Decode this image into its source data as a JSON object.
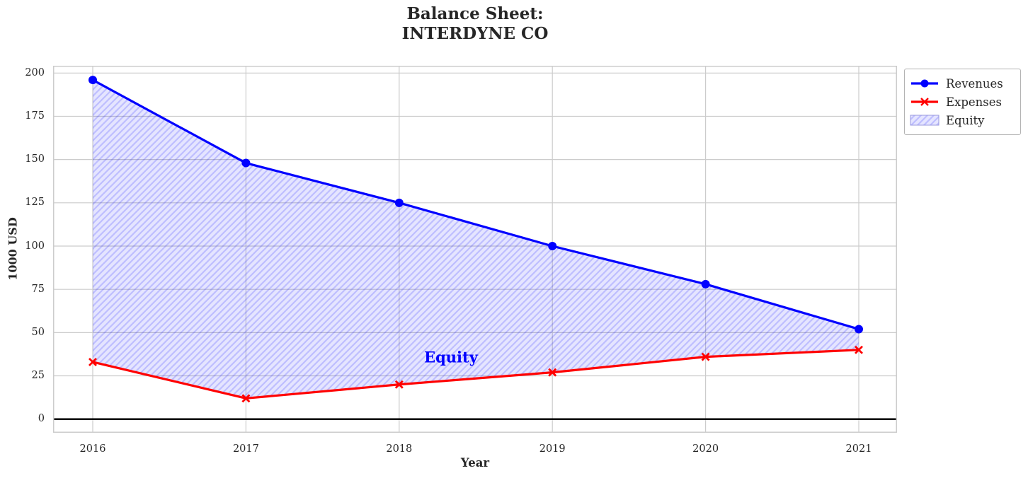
{
  "chart_data": {
    "type": "line",
    "title": "Balance Sheet:\nINTERDYNE CO",
    "title_lines": [
      "Balance Sheet:",
      "INTERDYNE CO"
    ],
    "xlabel": "Year",
    "ylabel": "1000 USD",
    "categories": [
      "2016",
      "2017",
      "2018",
      "2019",
      "2020",
      "2021"
    ],
    "series": [
      {
        "name": "Revenues",
        "color": "#0000ff",
        "marker": "circle",
        "values": [
          196,
          148,
          125,
          100,
          78,
          52
        ]
      },
      {
        "name": "Expenses",
        "color": "#ff0000",
        "marker": "x",
        "values": [
          33,
          12,
          20,
          27,
          36,
          40
        ]
      }
    ],
    "fill_between": {
      "name": "Equity",
      "facecolor": "rgba(0,0,255,0.10)",
      "hatch_color": "rgba(0,0,255,0.17)",
      "hatch_style": "diagonal-forward-slash",
      "swatch_border": "#9999dd"
    },
    "annotation": {
      "text": "Equity",
      "color": "#0000ff"
    },
    "yticks": [
      0,
      25,
      50,
      75,
      100,
      125,
      150,
      175,
      200
    ],
    "ylim": [
      -8,
      204
    ],
    "grid": true,
    "grid_color": "#cccccc",
    "spine_color": "#cccccc",
    "zero_line": {
      "show": true,
      "color": "#000000"
    },
    "text_color": "#262626",
    "legend": {
      "position": "upper-right-outside"
    }
  }
}
